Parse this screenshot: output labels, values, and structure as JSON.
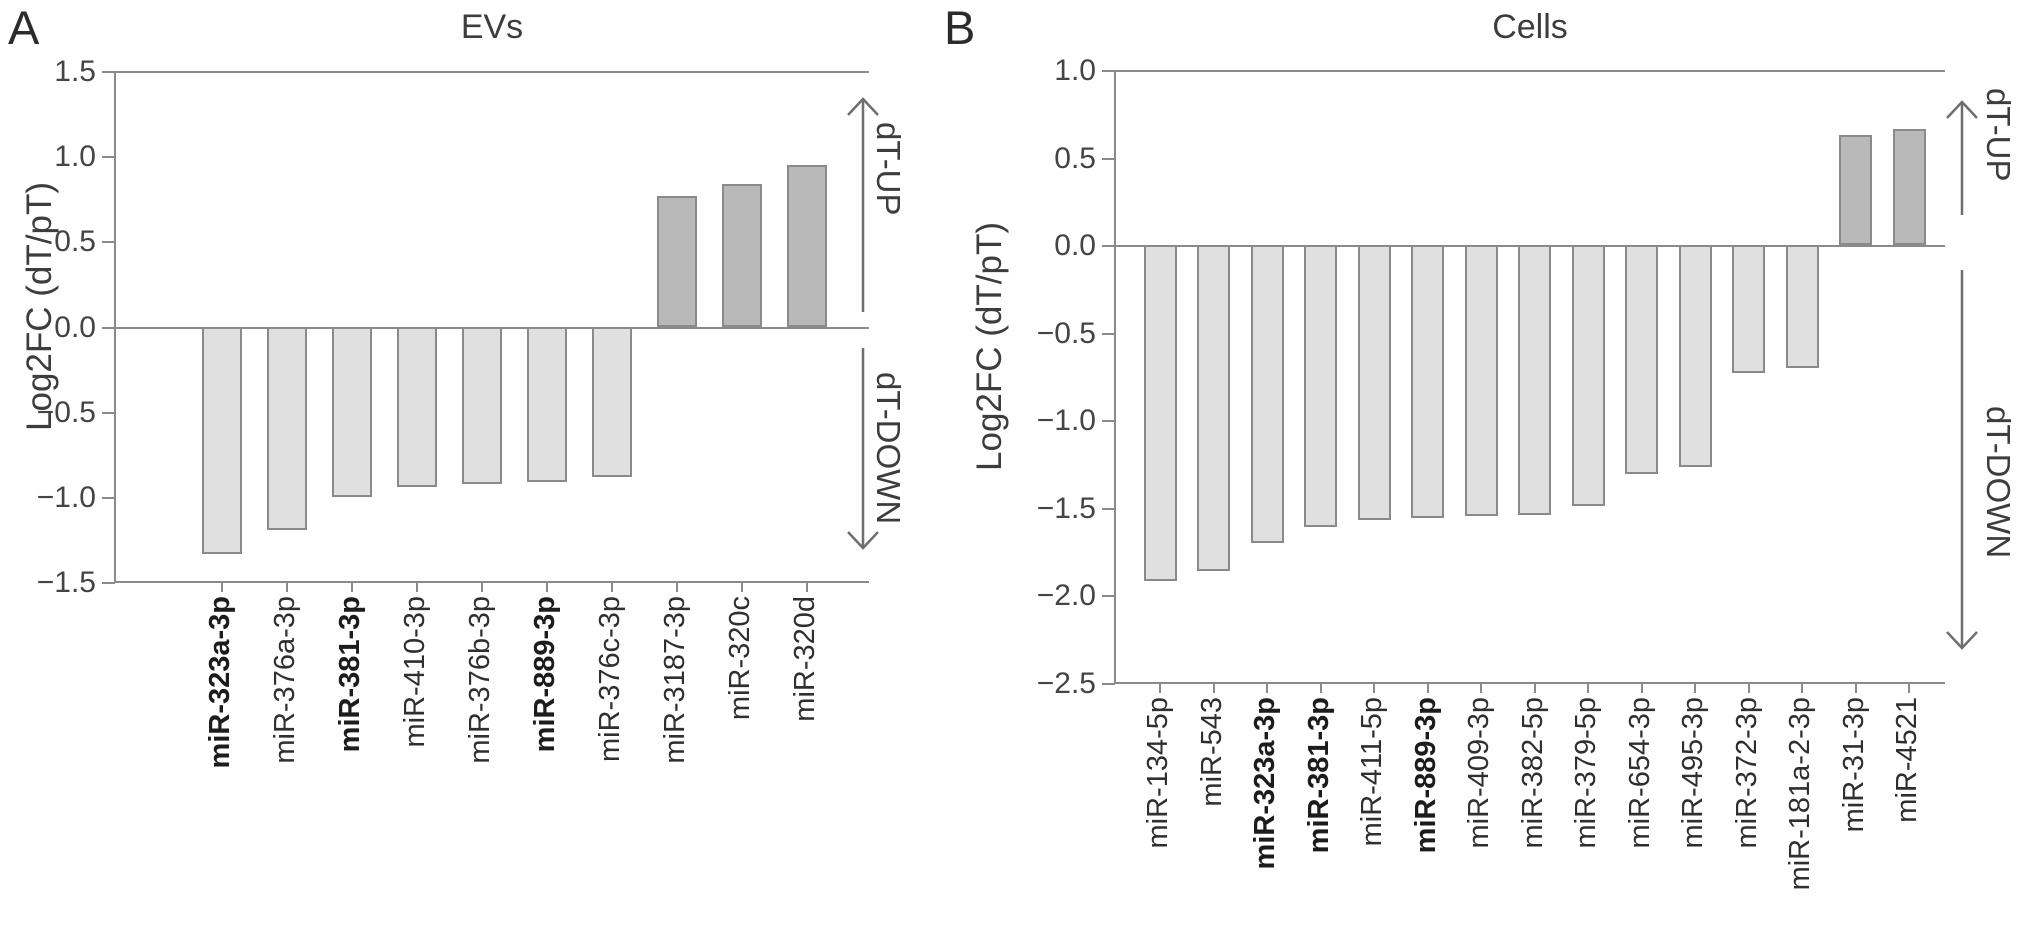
{
  "figure": {
    "panels": [
      {
        "letter": "A",
        "title": "EVs",
        "y_axis_label": "Log2FC (dT/pT)",
        "up_arrow_label": "dT-UP",
        "down_arrow_label": "dT-DOWN"
      },
      {
        "letter": "B",
        "title": "Cells",
        "y_axis_label": "Log2FC (dT/pT)",
        "up_arrow_label": "dT-UP",
        "down_arrow_label": "dT-DOWN"
      }
    ]
  },
  "chart_data": [
    {
      "type": "bar",
      "panel": "A",
      "title": "EVs",
      "ylabel": "Log2FC (dT/pT)",
      "ylim": [
        -1.5,
        1.5
      ],
      "ytick_step": 0.5,
      "y_tick_labels": [
        "1.5",
        "1.0",
        "0.5",
        "0.0",
        "−0.5",
        "−1.0",
        "−1.5"
      ],
      "categories": [
        "miR-323a-3p",
        "miR-376a-3p",
        "miR-381-3p",
        "miR-410-3p",
        "miR-376b-3p",
        "miR-889-3p",
        "miR-376c-3p",
        "miR-3187-3p",
        "miR-320c",
        "miR-320d"
      ],
      "values": [
        -1.33,
        -1.19,
        -1.0,
        -0.94,
        -0.92,
        -0.91,
        -0.88,
        0.77,
        0.84,
        0.95
      ],
      "bold_categories": [
        "miR-323a-3p",
        "miR-381-3p",
        "miR-889-3p"
      ],
      "annotations": {
        "up": "dT-UP",
        "down": "dT-DOWN"
      },
      "grid": false,
      "legend": false,
      "colors": {
        "negative_bar_fill": "#e0e0e0",
        "positive_bar_fill": "#b9b9b9",
        "bar_border": "#8a8a8a",
        "axis": "#8a8a8a",
        "text": "#3d3d3d"
      }
    },
    {
      "type": "bar",
      "panel": "B",
      "title": "Cells",
      "ylabel": "Log2FC (dT/pT)",
      "ylim": [
        -2.5,
        1.0
      ],
      "ytick_step": 0.5,
      "y_tick_labels": [
        "1.0",
        "0.5",
        "0.0",
        "−0.5",
        "−1.0",
        "−1.5",
        "−2.0",
        "−2.5"
      ],
      "categories": [
        "miR-134-5p",
        "miR-543",
        "miR-323a-3p",
        "miR-381-3p",
        "miR-411-5p",
        "miR-889-3p",
        "miR-409-3p",
        "miR-382-5p",
        "miR-379-5p",
        "miR-654-3p",
        "miR-495-3p",
        "miR-372-3p",
        "miR-181a-2-3p",
        "miR-31-3p",
        "miR-4521"
      ],
      "values": [
        -1.92,
        -1.86,
        -1.7,
        -1.61,
        -1.57,
        -1.56,
        -1.55,
        -1.54,
        -1.49,
        -1.31,
        -1.27,
        -0.73,
        -0.7,
        0.63,
        0.66
      ],
      "bold_categories": [
        "miR-323a-3p",
        "miR-381-3p",
        "miR-889-3p"
      ],
      "annotations": {
        "up": "dT-UP",
        "down": "dT-DOWN"
      },
      "grid": false,
      "legend": false,
      "colors": {
        "negative_bar_fill": "#e0e0e0",
        "positive_bar_fill": "#b9b9b9",
        "bar_border": "#8a8a8a",
        "axis": "#8a8a8a",
        "text": "#3d3d3d"
      }
    }
  ]
}
